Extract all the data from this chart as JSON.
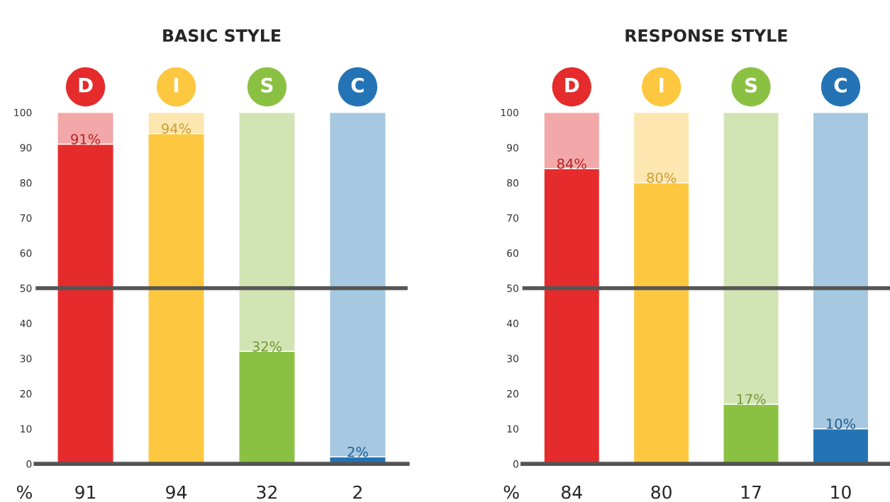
{
  "chart_data": [
    {
      "type": "bar",
      "title": "BASIC STYLE",
      "categories": [
        "D",
        "I",
        "S",
        "C"
      ],
      "stacked": true,
      "series": [
        {
          "colors": [
            "#e52b2b",
            "#fdc840",
            "#8bc142",
            "#2474b5"
          ],
          "values": [
            91,
            94,
            32,
            2
          ],
          "value_labels": [
            "91%",
            "94%",
            "32%",
            "2%"
          ]
        },
        {
          "colors": [
            "#f2a8a8",
            "#fde6b0",
            "#d3e4b4",
            "#a6c8e0"
          ],
          "values": [
            9,
            6,
            68,
            98
          ]
        }
      ],
      "ylim": [
        0,
        100
      ],
      "yticks": [
        0,
        10,
        20,
        30,
        40,
        50,
        60,
        70,
        80,
        90,
        100
      ],
      "grid": false,
      "legend": false,
      "ref_lines": [
        {
          "axis": "y",
          "value": 50,
          "color": "#555555"
        }
      ],
      "annotations": [
        "%",
        "91",
        "94",
        "32",
        "2"
      ]
    },
    {
      "type": "bar",
      "title": "RESPONSE STYLE",
      "categories": [
        "D",
        "I",
        "S",
        "C"
      ],
      "stacked": true,
      "series": [
        {
          "colors": [
            "#e52b2b",
            "#fdc840",
            "#8bc142",
            "#2474b5"
          ],
          "values": [
            84,
            80,
            17,
            10
          ],
          "value_labels": [
            "84%",
            "80%",
            "17%",
            "10%"
          ]
        },
        {
          "colors": [
            "#f2a8a8",
            "#fde6b0",
            "#d3e4b4",
            "#a6c8e0"
          ],
          "values": [
            16,
            20,
            83,
            90
          ]
        }
      ],
      "ylim": [
        0,
        100
      ],
      "yticks": [
        0,
        10,
        20,
        30,
        40,
        50,
        60,
        70,
        80,
        90,
        100
      ],
      "grid": false,
      "legend": false,
      "ref_lines": [
        {
          "axis": "y",
          "value": 50,
          "color": "#555555"
        }
      ],
      "annotations": [
        "%",
        "84",
        "80",
        "17",
        "10"
      ]
    }
  ]
}
